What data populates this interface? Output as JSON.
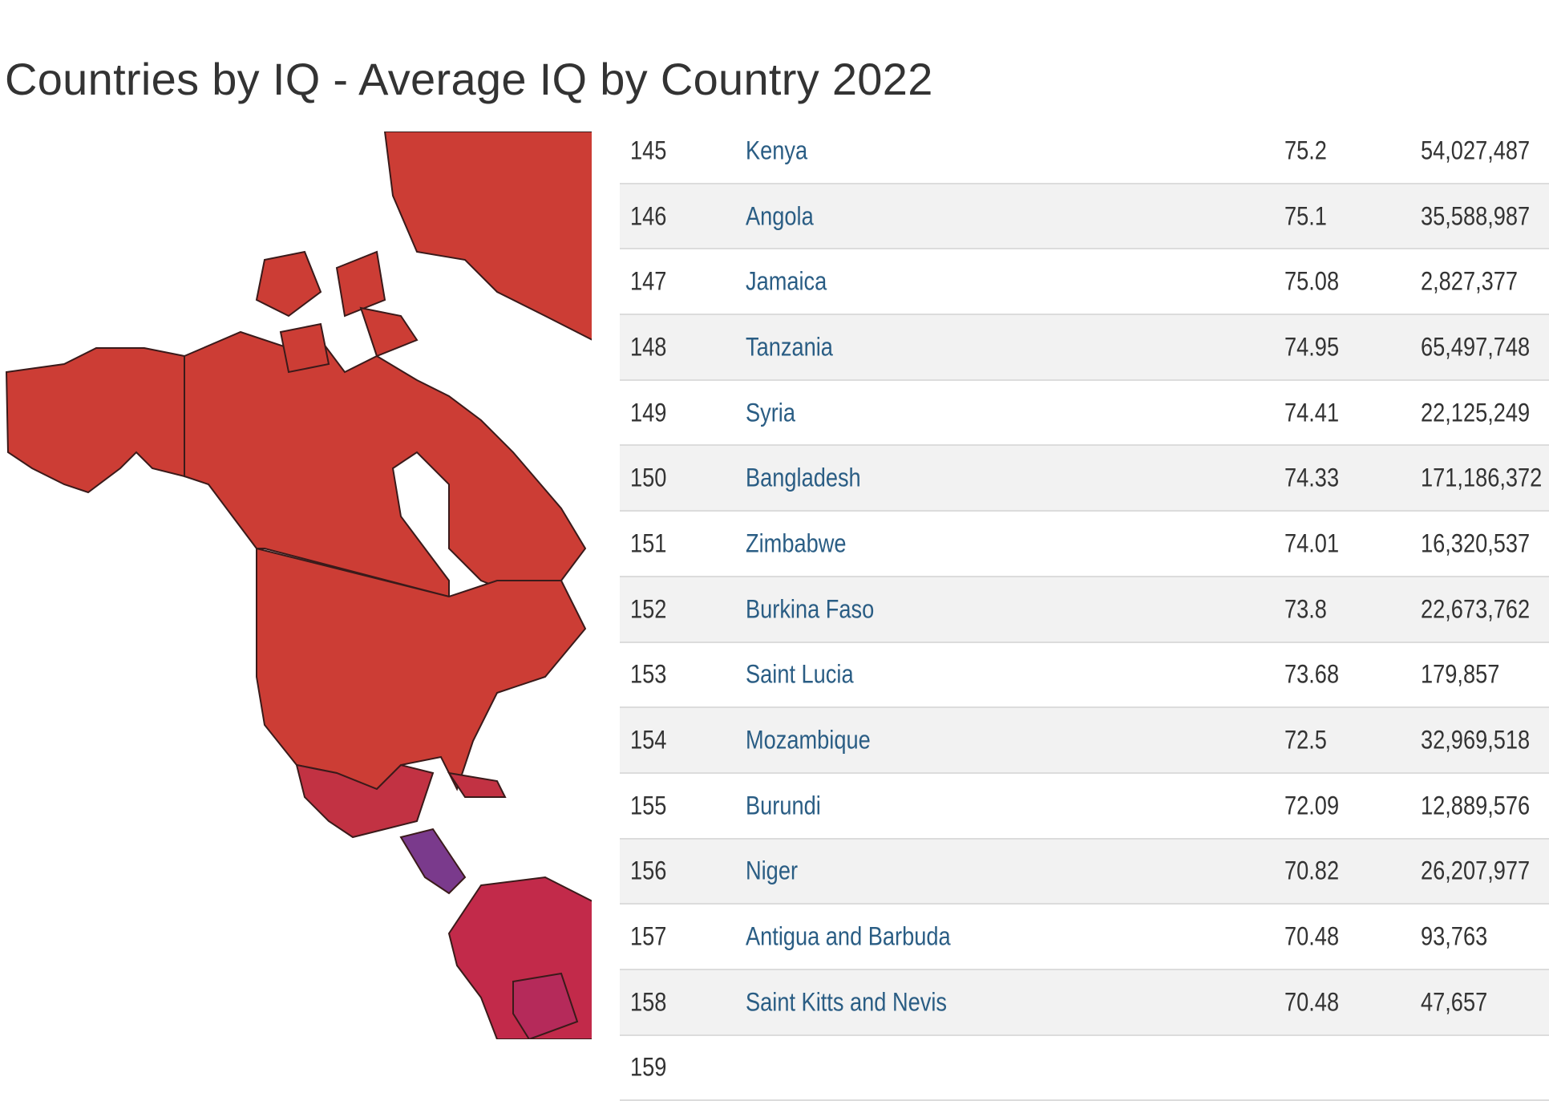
{
  "title": "Countries by IQ - Average IQ by Country 2022",
  "colors": {
    "map_high": "#cc3d35",
    "map_mid": "#c22a4a",
    "map_low": "#7a3a8c",
    "link": "#2a5d84"
  },
  "rows": [
    {
      "rank": "145",
      "country": "Kenya",
      "iq": "75.2",
      "population": "54,027,487"
    },
    {
      "rank": "146",
      "country": "Angola",
      "iq": "75.1",
      "population": "35,588,987"
    },
    {
      "rank": "147",
      "country": "Jamaica",
      "iq": "75.08",
      "population": "2,827,377"
    },
    {
      "rank": "148",
      "country": "Tanzania",
      "iq": "74.95",
      "population": "65,497,748"
    },
    {
      "rank": "149",
      "country": "Syria",
      "iq": "74.41",
      "population": "22,125,249"
    },
    {
      "rank": "150",
      "country": "Bangladesh",
      "iq": "74.33",
      "population": "171,186,372"
    },
    {
      "rank": "151",
      "country": "Zimbabwe",
      "iq": "74.01",
      "population": "16,320,537"
    },
    {
      "rank": "152",
      "country": "Burkina Faso",
      "iq": "73.8",
      "population": "22,673,762"
    },
    {
      "rank": "153",
      "country": "Saint Lucia",
      "iq": "73.68",
      "population": "179,857"
    },
    {
      "rank": "154",
      "country": "Mozambique",
      "iq": "72.5",
      "population": "32,969,518"
    },
    {
      "rank": "155",
      "country": "Burundi",
      "iq": "72.09",
      "population": "12,889,576"
    },
    {
      "rank": "156",
      "country": "Niger",
      "iq": "70.82",
      "population": "26,207,977"
    },
    {
      "rank": "157",
      "country": "Antigua and Barbuda",
      "iq": "70.48",
      "population": "93,763"
    },
    {
      "rank": "158",
      "country": "Saint Kitts and Nevis",
      "iq": "70.48",
      "population": "47,657"
    },
    {
      "rank": "159",
      "country": "",
      "iq": "",
      "population": ""
    }
  ]
}
